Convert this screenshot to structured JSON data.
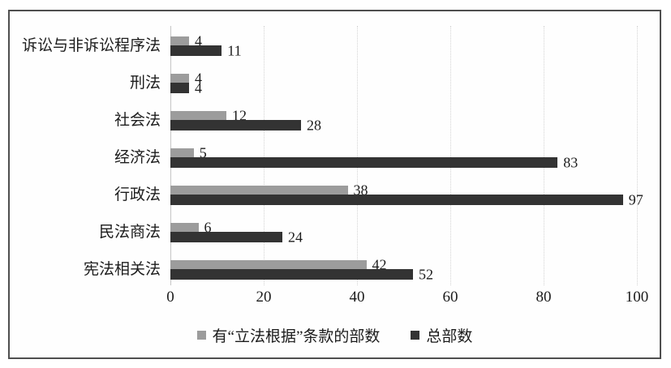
{
  "chart_data": {
    "type": "bar",
    "orientation": "horizontal",
    "title": "",
    "categories": [
      "诉讼与非诉讼程序法",
      "刑法",
      "社会法",
      "经济法",
      "行政法",
      "民法商法",
      "宪法相关法"
    ],
    "series": [
      {
        "name": "有“立法根据”条款的部数",
        "color": "#9c9c9c",
        "values": [
          4,
          4,
          12,
          5,
          38,
          6,
          42
        ]
      },
      {
        "name": "总部数",
        "color": "#333333",
        "values": [
          11,
          4,
          28,
          83,
          97,
          24,
          52
        ]
      }
    ],
    "xlim": [
      0,
      100
    ],
    "x_ticks": [
      0,
      20,
      40,
      60,
      80,
      100
    ],
    "grid": "vertical",
    "legend_position": "bottom",
    "value_labels": "outside-end",
    "frame_border_color": "#4f4f4f",
    "gridline_color": "#d4d4d4",
    "text_color": "#1c1c1c"
  }
}
